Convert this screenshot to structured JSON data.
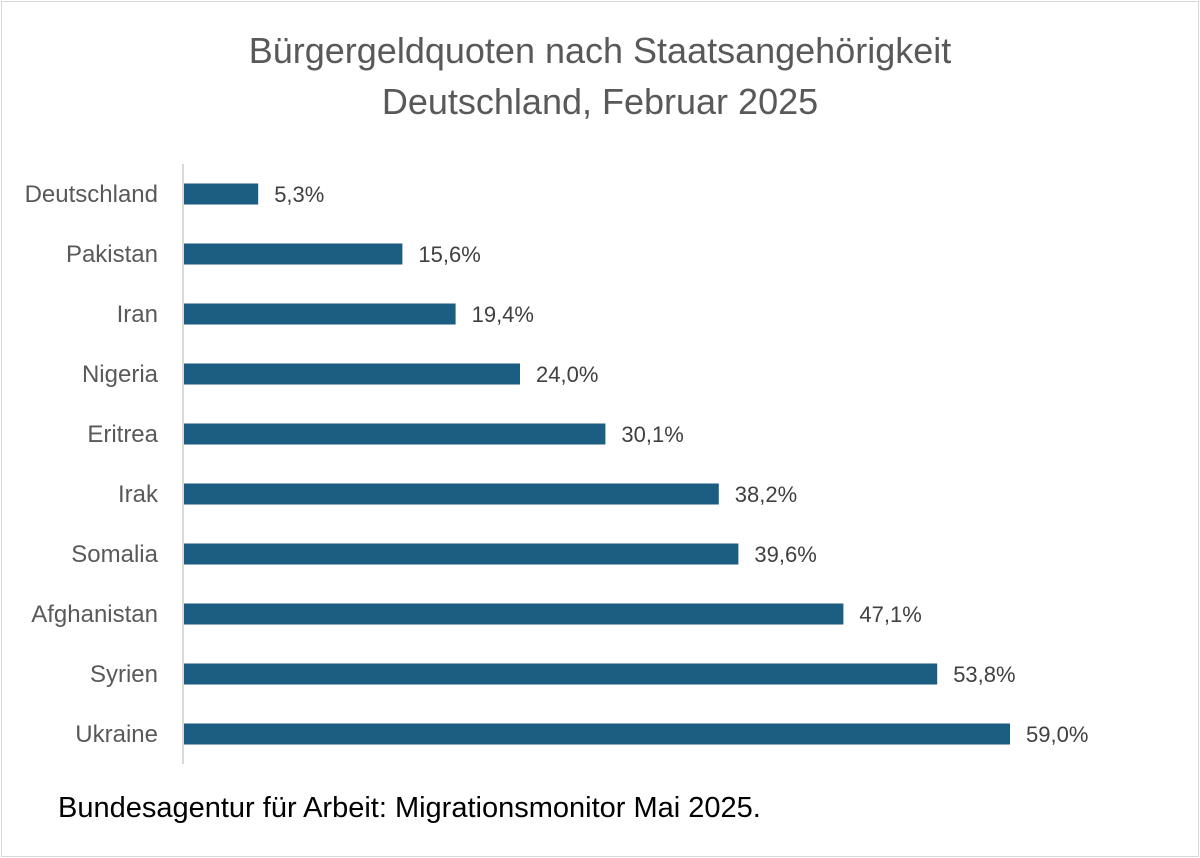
{
  "chart_data": {
    "type": "bar",
    "orientation": "horizontal",
    "title_lines": [
      "Bürgergeldquoten nach Staatsangehörigkeit",
      "Deutschland, Februar 2025"
    ],
    "categories": [
      "Deutschland",
      "Pakistan",
      "Iran",
      "Nigeria",
      "Eritrea",
      "Irak",
      "Somalia",
      "Afghanistan",
      "Syrien",
      "Ukraine"
    ],
    "values": [
      5.3,
      15.6,
      19.4,
      24.0,
      30.1,
      38.2,
      39.6,
      47.1,
      53.8,
      59.0
    ],
    "value_labels": [
      "5,3%",
      "15,6%",
      "19,4%",
      "24,0%",
      "30,1%",
      "38,2%",
      "39,6%",
      "47,1%",
      "53,8%",
      "59,0%"
    ],
    "unit": "%",
    "xlim": [
      0,
      59
    ],
    "grid": false,
    "bar_color": "#1b5e82",
    "source": "Bundesagentur für Arbeit: Migrationsmonitor Mai 2025."
  }
}
